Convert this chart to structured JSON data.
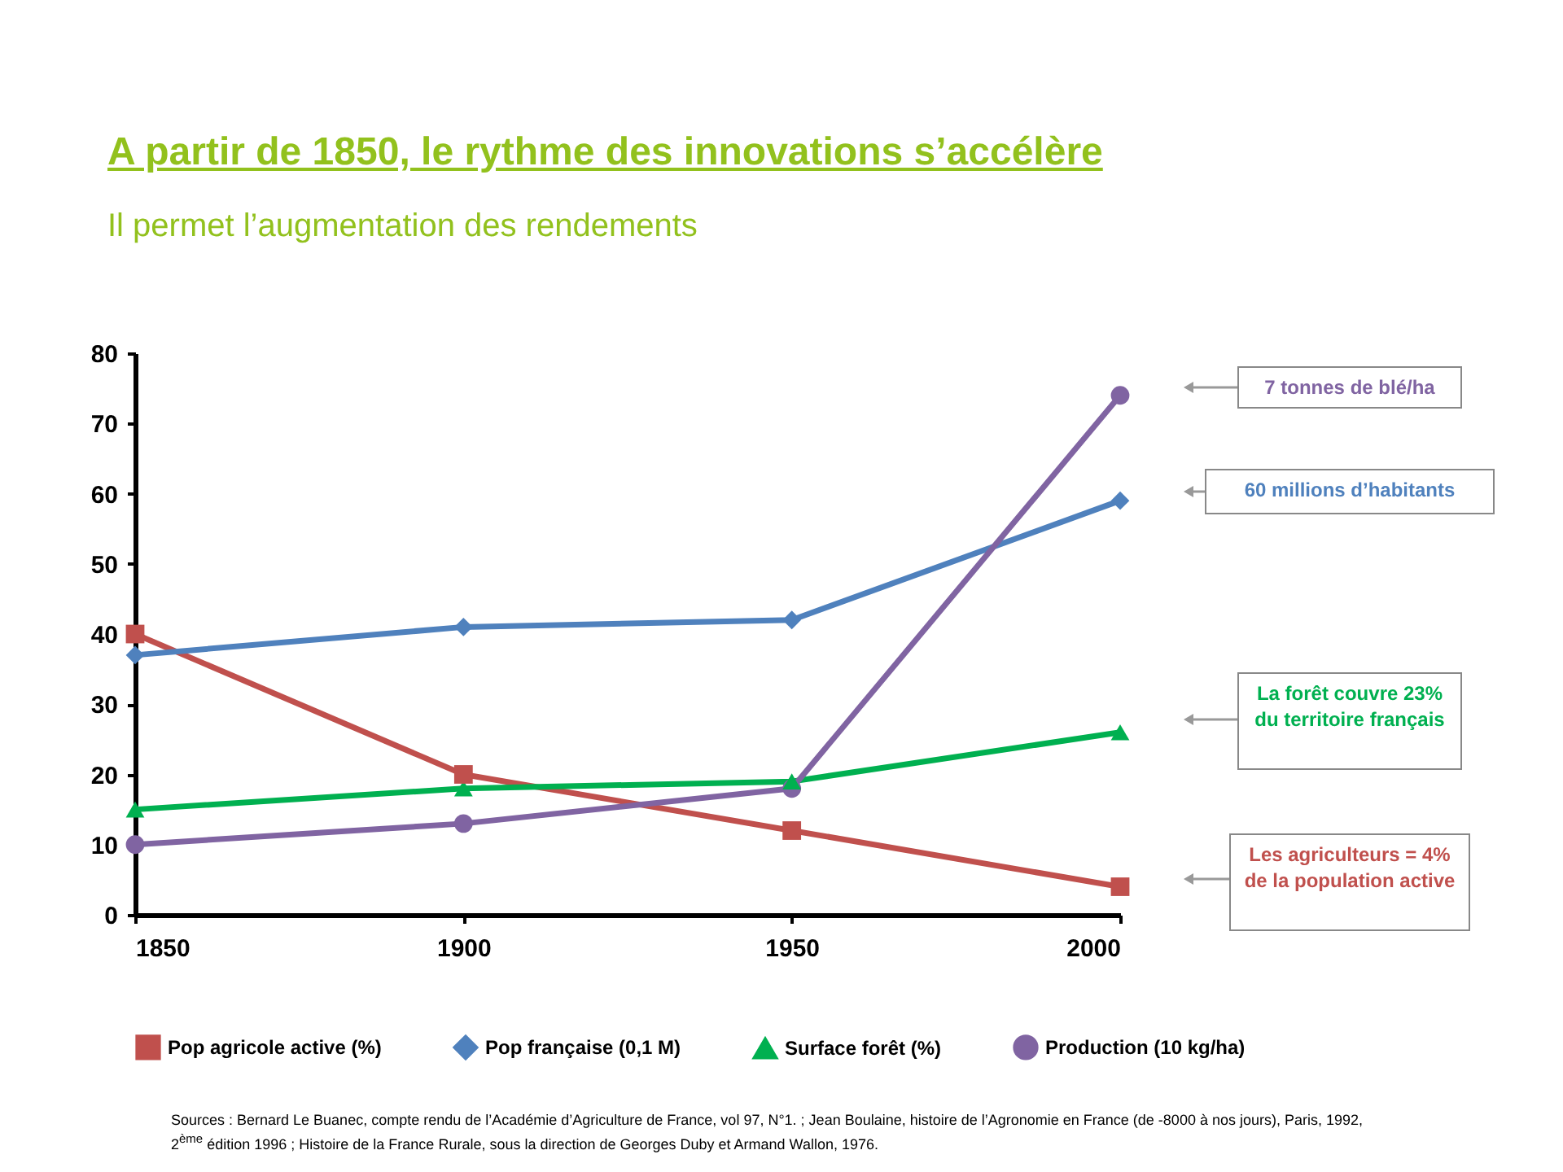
{
  "chart_data": {
    "type": "line",
    "title": "A partir de 1850, le rythme des innovations s’accélère",
    "subtitle": "Il permet l’augmentation des rendements",
    "x": [
      1850,
      1900,
      1950,
      2000
    ],
    "xlim": [
      1850,
      2000
    ],
    "xticks": [
      1850,
      1900,
      1950,
      2000
    ],
    "ylim": [
      0,
      80
    ],
    "yticks": [
      0,
      10,
      20,
      30,
      40,
      50,
      60,
      70,
      80
    ],
    "series": [
      {
        "name": "Pop agricole active (%)",
        "color": "#c0504d",
        "marker": "square",
        "values": [
          40,
          20,
          12,
          4
        ]
      },
      {
        "name": "Pop française (0,1 M)",
        "color": "#4f81bd",
        "marker": "diamond",
        "values": [
          37,
          41,
          42,
          59
        ]
      },
      {
        "name": "Surface forêt (%)",
        "color": "#00b050",
        "marker": "triangle",
        "values": [
          15,
          18,
          19,
          26
        ]
      },
      {
        "name": "Production (10 kg/ha)",
        "color": "#8064a2",
        "marker": "circle",
        "values": [
          10,
          13,
          18,
          74
        ]
      }
    ],
    "annotations": [
      "7 tonnes de blé/ha",
      "60 millions d’habitants",
      "La forêt couvre 23% du territoire français",
      "Les agriculteurs = 4% de la population active",
      "Sources : Bernard Le Buanec, compte rendu de l’Académie d’Agriculture de France, vol 97, N°1. ; Jean Boulaine, histoire de l’Agronomie en France (de -8000 à nos jours), Paris, 1992, 2$^{ème}$ édition 1996 ; Histoire de la France Rurale, sous la direction de Georges Duby et Armand Wallon, 1976."
    ],
    "grid": false,
    "legend": "bottom"
  }
}
